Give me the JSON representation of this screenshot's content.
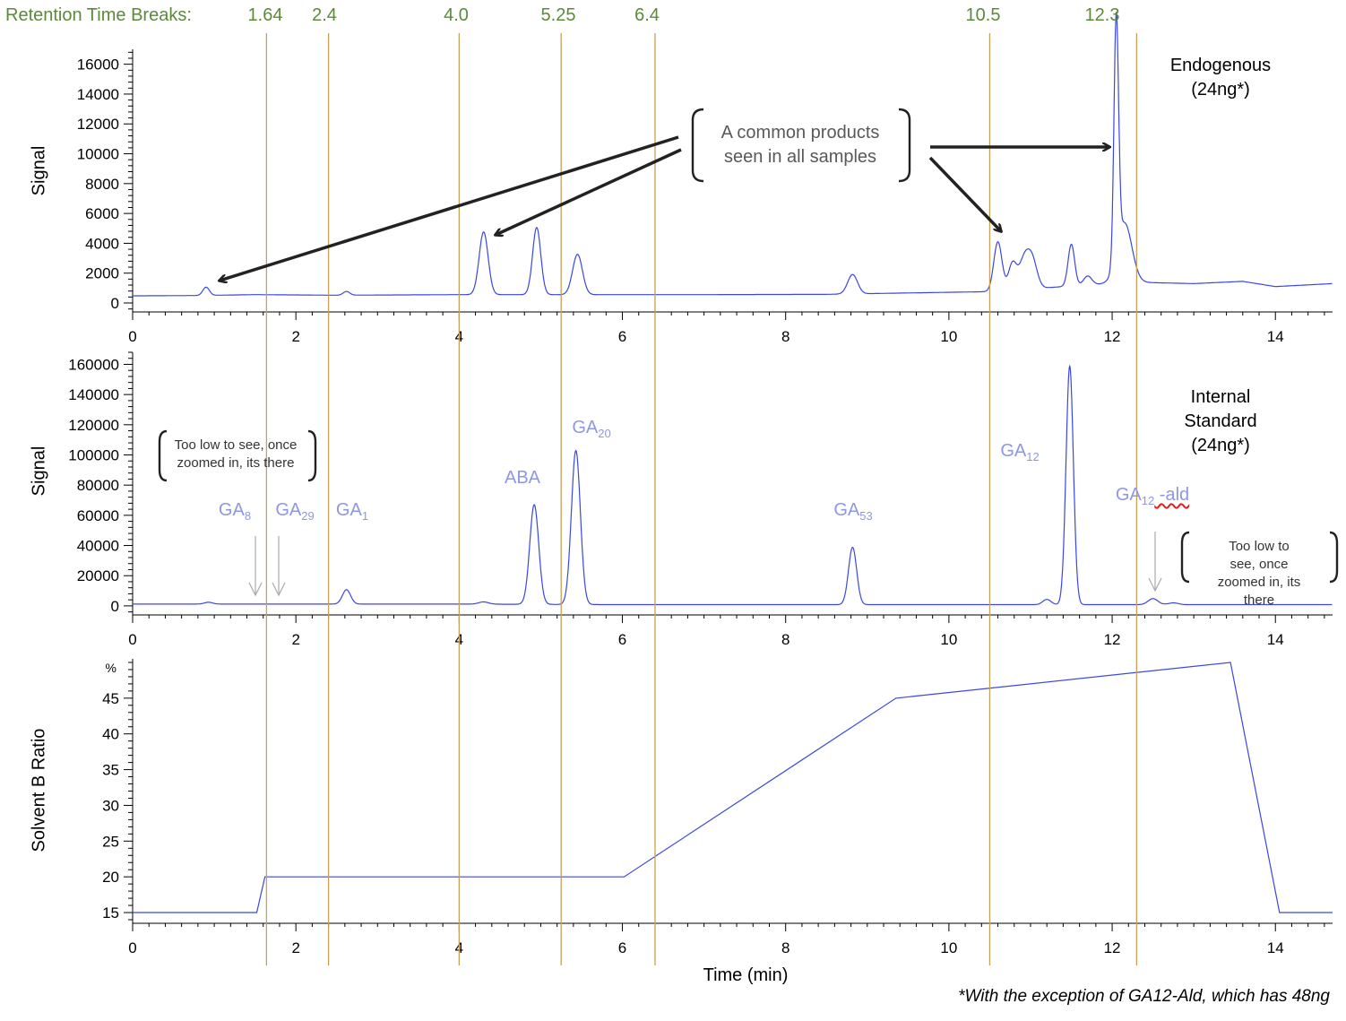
{
  "retention_breaks": {
    "label": "Retention Time Breaks:",
    "values": [
      "1.64",
      "2.4",
      "4.0",
      "5.25",
      "6.4",
      "10.5",
      "12.3"
    ]
  },
  "chart_data": [
    {
      "type": "line",
      "title": "Endogenous (24ng*)",
      "title_lines": [
        "Endogenous",
        "(24ng*)"
      ],
      "xlabel": "",
      "ylabel": "Signal",
      "xlim": [
        0,
        14.7
      ],
      "ylim": [
        -600,
        17000
      ],
      "xticks": [
        0,
        2,
        4,
        6,
        8,
        10,
        12,
        14
      ],
      "yticks": [
        0,
        2000,
        4000,
        6000,
        8000,
        10000,
        12000,
        14000,
        16000
      ],
      "line_color": "#3b47e0",
      "baseline": [
        [
          0,
          480
        ],
        [
          0.8,
          500
        ],
        [
          1.5,
          560
        ],
        [
          2.5,
          520
        ],
        [
          4,
          560
        ],
        [
          5.5,
          560
        ],
        [
          7,
          560
        ],
        [
          8.5,
          580
        ],
        [
          9.8,
          700
        ],
        [
          10.5,
          760
        ],
        [
          12.2,
          1400
        ],
        [
          13,
          1300
        ],
        [
          13.6,
          1450
        ],
        [
          14,
          1100
        ],
        [
          14.7,
          1300
        ]
      ],
      "peaks": [
        {
          "t": 0.9,
          "h": 550,
          "w": 0.04
        },
        {
          "t": 2.62,
          "h": 250,
          "w": 0.04
        },
        {
          "t": 4.3,
          "h": 4200,
          "w": 0.055
        },
        {
          "t": 4.95,
          "h": 4500,
          "w": 0.05
        },
        {
          "t": 5.45,
          "h": 2700,
          "w": 0.06
        },
        {
          "t": 8.82,
          "h": 1300,
          "w": 0.06
        },
        {
          "t": 10.6,
          "h": 3300,
          "w": 0.05
        },
        {
          "t": 10.78,
          "h": 1800,
          "w": 0.05
        },
        {
          "t": 10.92,
          "h": 1900,
          "w": 0.06
        },
        {
          "t": 11.02,
          "h": 1900,
          "w": 0.06
        },
        {
          "t": 11.5,
          "h": 2800,
          "w": 0.04
        },
        {
          "t": 11.7,
          "h": 600,
          "w": 0.05
        },
        {
          "t": 12.05,
          "h": 16000,
          "w": 0.028
        },
        {
          "t": 12.15,
          "h": 4000,
          "w": 0.09
        }
      ]
    },
    {
      "type": "line",
      "title": "Internal Standard (24ng*)",
      "title_lines": [
        "Internal Standard",
        "(24ng*)"
      ],
      "xlabel": "",
      "ylabel": "Signal",
      "xlim": [
        0,
        14.7
      ],
      "ylim": [
        -6000,
        168000
      ],
      "xticks": [
        0,
        2,
        4,
        6,
        8,
        10,
        12,
        14
      ],
      "yticks": [
        0,
        20000,
        40000,
        60000,
        80000,
        100000,
        120000,
        140000,
        160000
      ],
      "line_color": "#3b47e0",
      "baseline": [
        [
          0,
          1200
        ],
        [
          2,
          1200
        ],
        [
          4,
          1200
        ],
        [
          6,
          800
        ],
        [
          10,
          800
        ],
        [
          14.7,
          800
        ]
      ],
      "peaks": [
        {
          "t": 0.93,
          "h": 1200,
          "w": 0.05
        },
        {
          "t": 2.62,
          "h": 9500,
          "w": 0.05
        },
        {
          "t": 4.3,
          "h": 1500,
          "w": 0.06
        },
        {
          "t": 4.92,
          "h": 66000,
          "w": 0.055
        },
        {
          "t": 5.43,
          "h": 102000,
          "w": 0.055
        },
        {
          "t": 8.82,
          "h": 38000,
          "w": 0.05
        },
        {
          "t": 11.2,
          "h": 3500,
          "w": 0.05
        },
        {
          "t": 11.48,
          "h": 158000,
          "w": 0.045
        },
        {
          "t": 12.5,
          "h": 4000,
          "w": 0.06
        },
        {
          "t": 12.75,
          "h": 1200,
          "w": 0.06
        }
      ],
      "peak_labels": [
        {
          "label": "GA",
          "sub": "8",
          "t": 1.5
        },
        {
          "label": "GA",
          "sub": "29",
          "t": 1.95
        },
        {
          "label": "GA",
          "sub": "1",
          "t": 2.7
        },
        {
          "label": "ABA",
          "sub": "",
          "t": 4.8
        },
        {
          "label": "GA",
          "sub": "20",
          "t": 5.6
        },
        {
          "label": "GA",
          "sub": "53",
          "t": 8.85
        },
        {
          "label": "GA",
          "sub": "12",
          "t": 10.85
        },
        {
          "label": "GA",
          "sub": "12",
          "suffix": " -ald",
          "t": 12.5
        }
      ]
    },
    {
      "type": "line",
      "title": "",
      "xlabel": "Time (min)",
      "ylabel": "Solvent B Ratio",
      "xlim": [
        0,
        14.7
      ],
      "ylim": [
        13.5,
        50.5
      ],
      "xticks": [
        0,
        2,
        4,
        6,
        8,
        10,
        12,
        14
      ],
      "yticks": [
        15,
        20,
        25,
        30,
        35,
        40,
        45
      ],
      "y_unit_label": "%",
      "line_color": "#3b47e0",
      "points": [
        [
          0,
          15
        ],
        [
          1.52,
          15
        ],
        [
          1.62,
          20
        ],
        [
          6.02,
          20
        ],
        [
          9.35,
          45
        ],
        [
          13.45,
          50
        ],
        [
          14.05,
          15
        ],
        [
          14.7,
          15
        ]
      ]
    }
  ],
  "callout": {
    "line1": "A common products",
    "line2": "seen in all samples"
  },
  "notes": {
    "left_line1": "Too low to see, once",
    "left_line2": "zoomed in, its there",
    "right_line1": "Too low to see, once",
    "right_line2": "zoomed in, its there"
  },
  "footnote": "*With the exception of GA12-Ald, which has 48ng",
  "colors": {
    "trace": "#3b47e0",
    "break_line": "#c8a058",
    "break_text": "#5b8a3a",
    "peak_label": "#8f97e3",
    "arrow": "#222222",
    "grey_arrow": "#aaaaaa"
  }
}
